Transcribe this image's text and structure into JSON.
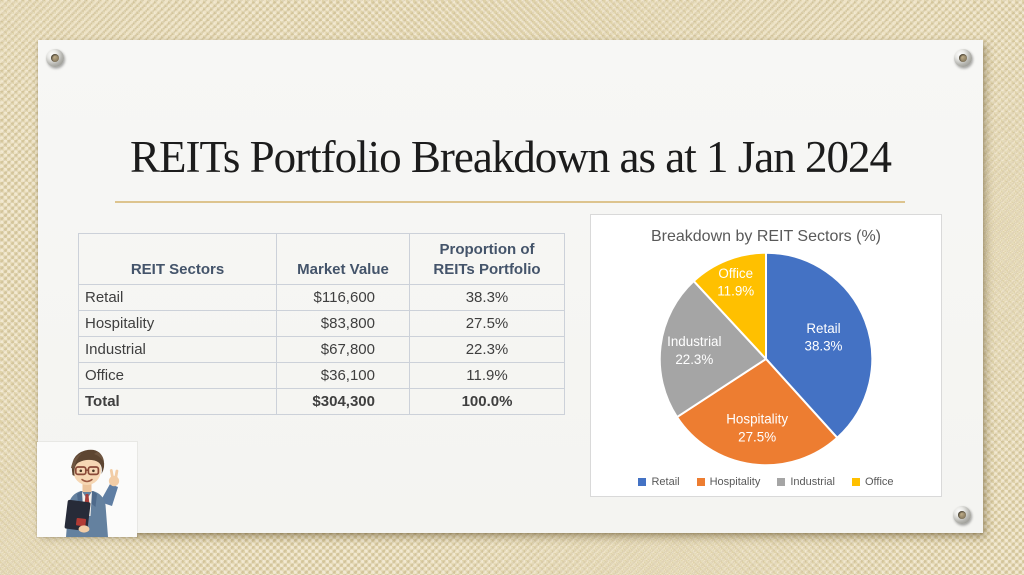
{
  "slide": {
    "title": "REITs Portfolio Breakdown as at 1 Jan 2024"
  },
  "table": {
    "headers": {
      "sector": "REIT Sectors",
      "market_value": "Market Value",
      "proportion": "Proportion of\nREITs Portfolio"
    },
    "rows": [
      {
        "sector": "Retail",
        "market_value": "$116,600",
        "proportion": "38.3%",
        "bold": false
      },
      {
        "sector": "Hospitality",
        "market_value": "$83,800",
        "proportion": "27.5%",
        "bold": false
      },
      {
        "sector": "Industrial",
        "market_value": "$67,800",
        "proportion": "22.3%",
        "bold": false
      },
      {
        "sector": "Office",
        "market_value": "$36,100",
        "proportion": "11.9%",
        "bold": false
      },
      {
        "sector": "Total",
        "market_value": "$304,300",
        "proportion": "100.0%",
        "bold": true
      }
    ]
  },
  "chart_data": {
    "type": "pie",
    "title": "Breakdown by REIT Sectors (%)",
    "categories": [
      "Retail",
      "Hospitality",
      "Industrial",
      "Office"
    ],
    "values": [
      38.3,
      27.5,
      22.3,
      11.9
    ],
    "colors": [
      "#4472C4",
      "#ED7D31",
      "#A5A5A5",
      "#FFC000"
    ],
    "legend": [
      "Retail",
      "Hospitality",
      "Industrial",
      "Office"
    ],
    "legend_position": "bottom",
    "start_angle_deg": 0,
    "direction": "clockwise",
    "slice_label_color": "#ffffff",
    "label_radius_factors": [
      0.58,
      0.65,
      0.68,
      0.78
    ]
  },
  "character": {
    "alt": "Cartoon man with glasses in a blue blazer holding a dark book and making a peace sign"
  },
  "theme": {
    "background_base": "#e7dbb5",
    "card_color": "#f6f6f4",
    "divider_color": "#ddc48e",
    "title_color": "#1c1c1c",
    "table_header_color": "#44546A",
    "chart_text_color": "#595959"
  }
}
